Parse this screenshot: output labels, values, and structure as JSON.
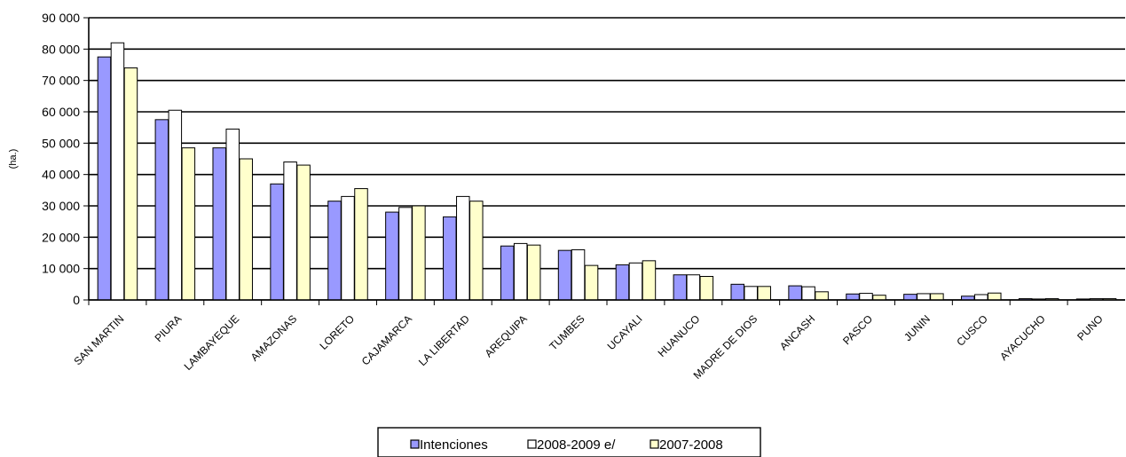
{
  "chart_data": {
    "type": "bar",
    "ylabel": "(ha.)",
    "ylim": [
      0,
      90000
    ],
    "yticks": [
      0,
      10000,
      20000,
      30000,
      40000,
      50000,
      60000,
      70000,
      80000,
      90000
    ],
    "ytick_labels": [
      "0",
      "10 000",
      "20 000",
      "30 000",
      "40 000",
      "50 000",
      "60 000",
      "70 000",
      "80 000",
      "90 000"
    ],
    "grid": true,
    "legend_position": "bottom",
    "categories": [
      "SAN MARTIN",
      "PIURA",
      "LAMBAYEQUE",
      "AMAZONAS",
      "LORETO",
      "CAJAMARCA",
      "LA LIBERTAD",
      "AREQUIPA",
      "TUMBES",
      "UCAYALI",
      "HUANUCO",
      "MADRE DE DIOS",
      "ANCASH",
      "PASCO",
      "JUNIN",
      "CUSCO",
      "AYACUCHO",
      "PUNO"
    ],
    "series": [
      {
        "name": "Intenciones",
        "color": "#9999ff",
        "values": [
          77500,
          57500,
          48500,
          37000,
          31500,
          28000,
          26500,
          17200,
          15800,
          11200,
          8000,
          5000,
          4500,
          1900,
          1800,
          1200,
          400,
          300
        ]
      },
      {
        "name": "2008-2009 e/",
        "color": "#ffffff",
        "values": [
          82000,
          60500,
          54500,
          44000,
          33000,
          29500,
          33000,
          18000,
          16000,
          11800,
          8000,
          4300,
          4200,
          2100,
          2000,
          1700,
          300,
          400
        ]
      },
      {
        "name": "2007-2008",
        "color": "#ffffcc",
        "values": [
          74000,
          48500,
          45000,
          43000,
          35500,
          30000,
          31500,
          17500,
          11000,
          12500,
          7500,
          4300,
          2600,
          1500,
          2000,
          2200,
          400,
          400
        ]
      }
    ]
  }
}
